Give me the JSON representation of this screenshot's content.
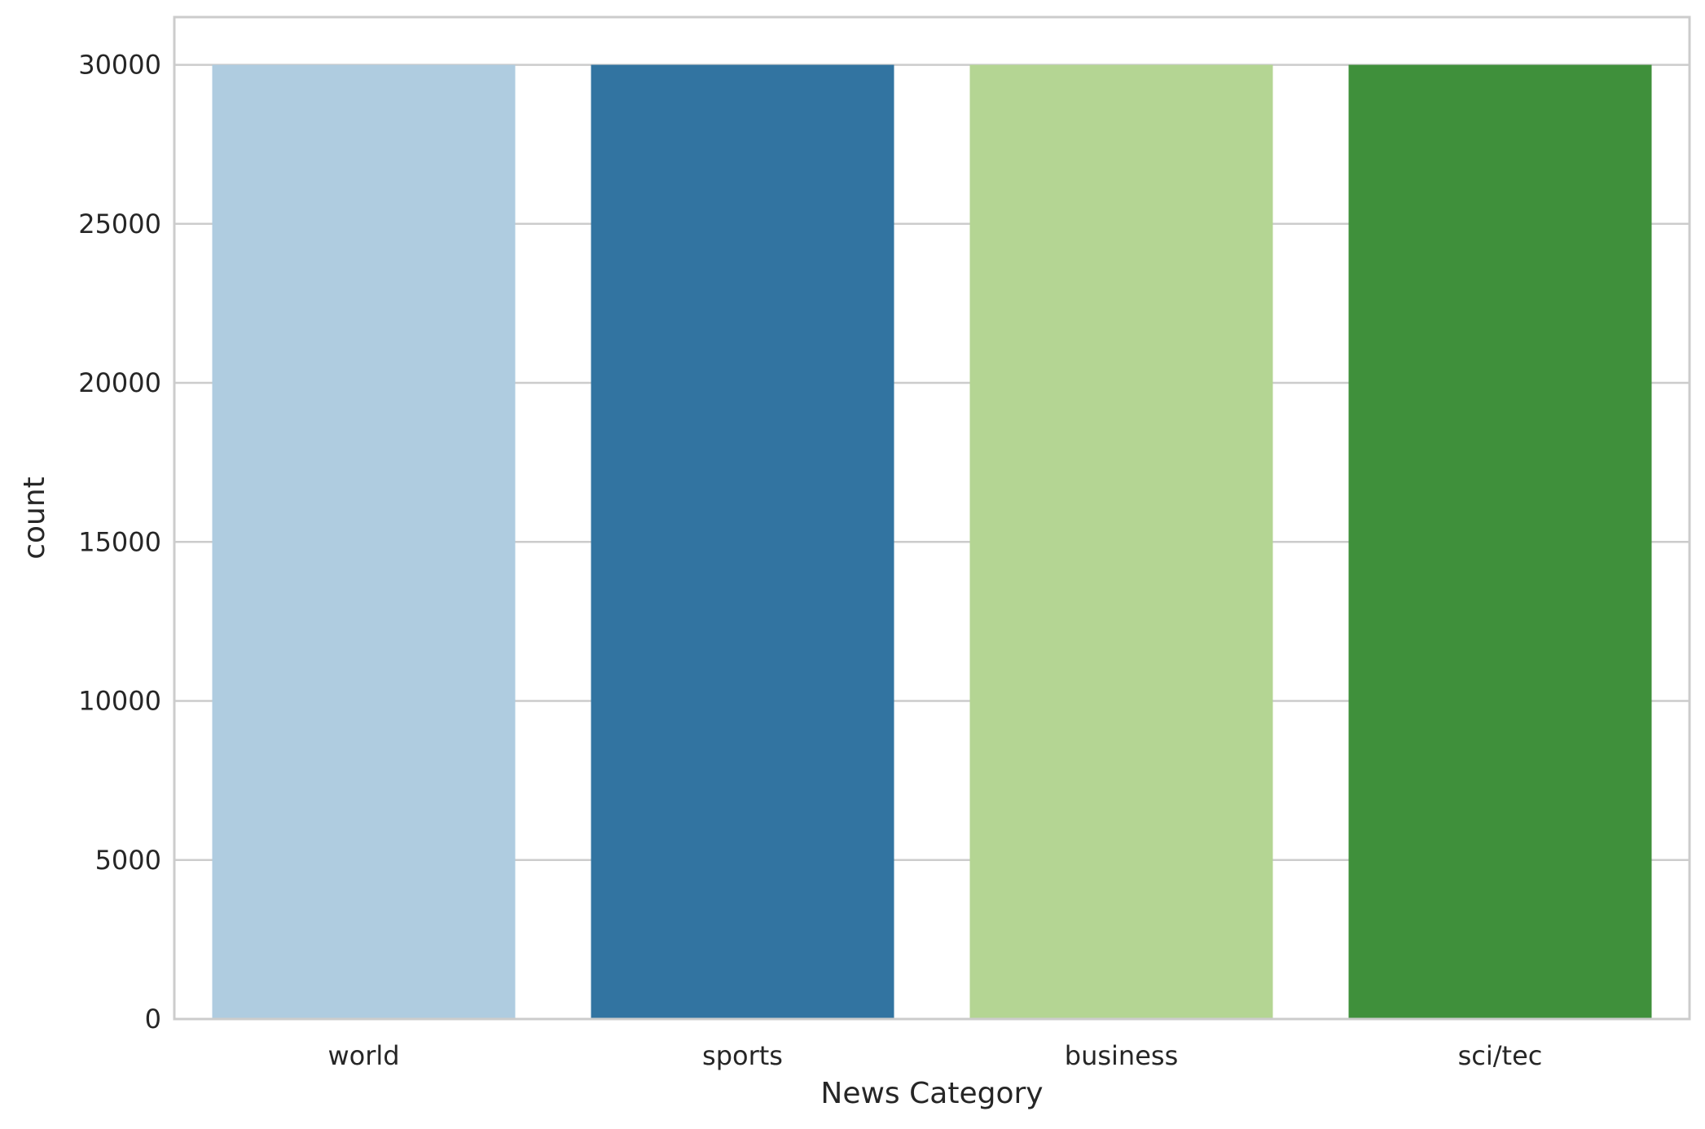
{
  "chart_data": {
    "type": "bar",
    "title": "",
    "xlabel": "News Category",
    "ylabel": "count",
    "categories": [
      "world",
      "sports",
      "business",
      "sci/tec"
    ],
    "values": [
      30000,
      30000,
      30000,
      30000
    ],
    "colors": [
      "#afcce0",
      "#3274a1",
      "#b4d593",
      "#3f903b"
    ],
    "ylim": [
      0,
      31500
    ],
    "yticks": [
      0,
      5000,
      10000,
      15000,
      20000,
      25000,
      30000
    ],
    "ytick_labels": [
      "0",
      "5000",
      "10000",
      "15000",
      "20000",
      "25000",
      "30000"
    ],
    "grid": true,
    "grid_axis": "y",
    "grid_color": "#cccccc",
    "frame_color": "#cccccc",
    "text_color": "#262626"
  }
}
